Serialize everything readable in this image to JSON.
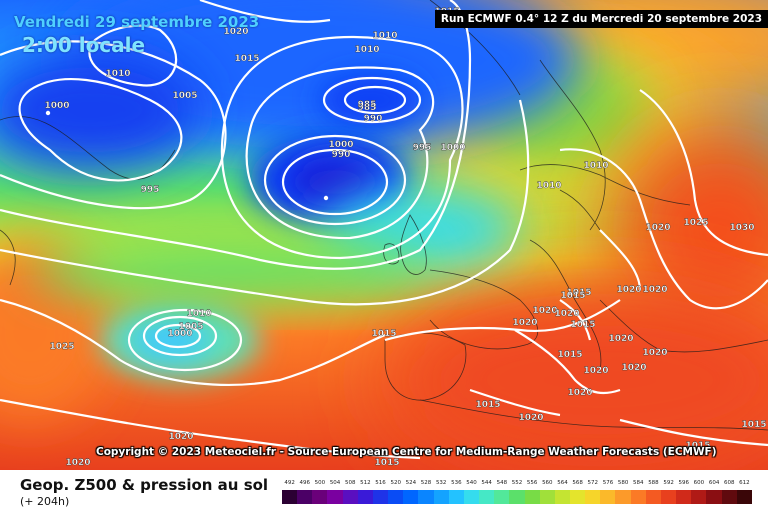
{
  "header": {
    "date": "Vendredi 29 septembre 2023",
    "time": "2:00 locale",
    "run": "Run ECMWF 0.4° 12 Z du Mercredi 20 septembre 2023"
  },
  "copyright": "Copyright © 2023 Meteociel.fr - Source European Centre for Medium-Range Weather Forecasts (ECMWF)",
  "footer": {
    "title": "Geop. Z500 & pression au sol",
    "subtitle": "(+ 204h)"
  },
  "scale": {
    "ticks": [
      "492",
      "496",
      "500",
      "504",
      "508",
      "512",
      "516",
      "520",
      "524",
      "528",
      "532",
      "536",
      "540",
      "544",
      "548",
      "552",
      "556",
      "560",
      "564",
      "568",
      "572",
      "576",
      "580",
      "584",
      "588",
      "592",
      "596",
      "600",
      "604",
      "608",
      "612"
    ],
    "colors": [
      "#2b0033",
      "#4b0066",
      "#6a007a",
      "#7a00a0",
      "#5a0fc0",
      "#3a1ad8",
      "#1f33e8",
      "#0a4cf5",
      "#0066ff",
      "#0a85ff",
      "#14a3ff",
      "#23c2ff",
      "#35dcee",
      "#45e8c6",
      "#52e89a",
      "#5be06a",
      "#78dc46",
      "#a0e03a",
      "#c4e432",
      "#e4e42c",
      "#f6d52a",
      "#fbb92a",
      "#fc9a2a",
      "#fb7a26",
      "#f45a22",
      "#e8401e",
      "#d02a1a",
      "#b01a16",
      "#8a0e12",
      "#600a0e",
      "#3a0608"
    ]
  },
  "pressure_labels": [
    "1020",
    "1015",
    "1010",
    "1005",
    "1000",
    "995",
    "990",
    "985",
    "1015",
    "1010",
    "1010",
    "1000",
    "995",
    "1000",
    "990",
    "985",
    "995",
    "1010",
    "1010",
    "1025",
    "1030",
    "1020",
    "1015",
    "1020",
    "1020",
    "1020",
    "1015",
    "1015",
    "1020",
    "1020",
    "1020",
    "1020",
    "1020",
    "1020",
    "1015",
    "1010",
    "1005",
    "1000",
    "1025",
    "1015",
    "1015",
    "1020",
    "1020",
    "1015",
    "1015",
    "1020",
    "1015",
    "1020"
  ]
}
